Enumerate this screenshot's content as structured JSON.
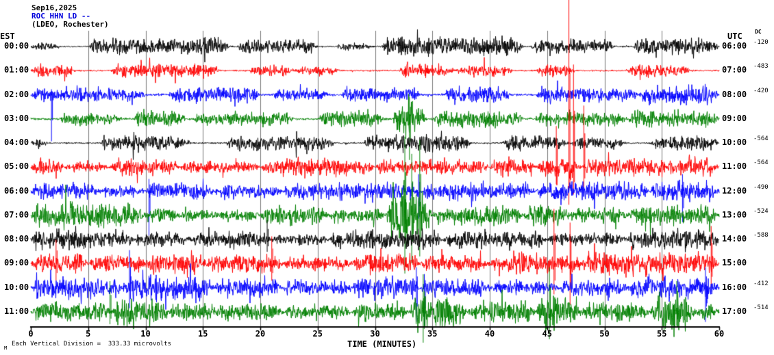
{
  "header": {
    "date": "Sep16,2025",
    "station": "ROC HHN LD --",
    "station_color": "#0000dd",
    "location": "(LDEO, Rochester)"
  },
  "axis": {
    "left": "EST",
    "right": "UTC",
    "dc": "DC",
    "x_label": "TIME (MINUTES)",
    "x_ticks": [
      0,
      5,
      10,
      15,
      20,
      25,
      30,
      35,
      40,
      45,
      50,
      55,
      60
    ]
  },
  "footer": {
    "scale_note": "Each Vertical Division =  333.33 microvolts",
    "mark": "M"
  },
  "chart_data": {
    "type": "line",
    "title": "ROC HHN LD -- (LDEO, Rochester) helicorder, Sep16,2025",
    "x_range_minutes": [
      0,
      60
    ],
    "minutes_per_row": 60,
    "vertical_division_microvolts": 333.33,
    "grid": "vertical lines every 5 minutes",
    "colors_cycle": [
      "#000000",
      "#ff0000",
      "#0000ff",
      "#008000"
    ],
    "rows": [
      {
        "est": "00:00",
        "utc": "06:00",
        "dc": "-120",
        "color": "#000000",
        "seed": 101,
        "base": 1.2,
        "bursts": [
          [
            0,
            2.5,
            7
          ],
          [
            5,
            17.5,
            13
          ],
          [
            18,
            25,
            11
          ],
          [
            26.5,
            30,
            5
          ],
          [
            30.5,
            43,
            15
          ],
          [
            43.5,
            51,
            11
          ],
          [
            52.5,
            60,
            13
          ]
        ],
        "spikes": []
      },
      {
        "est": "01:00",
        "utc": "07:00",
        "dc": "-483",
        "color": "#ff0000",
        "seed": 102,
        "base": 1.2,
        "bursts": [
          [
            0,
            4,
            10
          ],
          [
            7,
            16.5,
            11
          ],
          [
            19,
            23,
            10
          ],
          [
            23,
            27,
            7
          ],
          [
            32,
            37,
            11
          ],
          [
            37,
            42,
            9
          ],
          [
            44,
            47.5,
            10
          ],
          [
            52,
            57.5,
            11
          ]
        ],
        "spikes": []
      },
      {
        "est": "02:00",
        "utc": "08:00",
        "dc": "-420",
        "color": "#0000ff",
        "seed": 103,
        "base": 1.8,
        "bursts": [
          [
            0,
            10,
            11
          ],
          [
            12,
            20,
            13
          ],
          [
            21,
            26,
            9
          ],
          [
            27,
            34,
            11
          ],
          [
            36,
            42,
            13
          ],
          [
            44,
            53,
            13
          ],
          [
            53,
            60,
            15
          ]
        ],
        "spikes": [
          [
            1.8,
            8,
            68
          ]
        ]
      },
      {
        "est": "03:00",
        "utc": "09:00",
        "dc": "",
        "color": "#008000",
        "seed": 104,
        "base": 1.8,
        "bursts": [
          [
            2.5,
            8,
            9
          ],
          [
            9,
            13.5,
            15
          ],
          [
            14,
            23,
            11
          ],
          [
            25,
            31,
            13
          ],
          [
            31.5,
            34.5,
            26
          ],
          [
            35,
            43,
            13
          ],
          [
            44,
            52,
            11
          ],
          [
            52,
            60,
            14
          ]
        ],
        "spikes": [
          [
            33,
            32,
            60
          ]
        ]
      },
      {
        "est": "04:00",
        "utc": "10:00",
        "dc": "-564",
        "color": "#000000",
        "seed": 105,
        "base": 1.2,
        "bursts": [
          [
            0,
            1.5,
            8
          ],
          [
            6,
            14,
            12
          ],
          [
            17,
            26.5,
            12
          ],
          [
            29,
            38.5,
            13
          ],
          [
            41,
            47,
            11
          ],
          [
            47,
            52,
            9
          ],
          [
            54,
            60,
            12
          ]
        ],
        "spikes": []
      },
      {
        "est": "05:00",
        "utc": "11:00",
        "dc": "-564",
        "color": "#ff0000",
        "seed": 106,
        "base": 2.2,
        "bursts": [
          [
            0,
            3,
            13
          ],
          [
            3,
            7,
            8
          ],
          [
            7,
            13,
            13
          ],
          [
            13,
            20,
            9
          ],
          [
            20,
            30,
            13
          ],
          [
            30,
            40,
            11
          ],
          [
            40,
            44,
            14
          ],
          [
            44,
            48,
            18
          ],
          [
            48,
            60,
            14
          ]
        ],
        "spikes": [
          [
            45.8,
            60,
            25
          ],
          [
            46.9,
            250,
            55
          ],
          [
            47.3,
            150,
            40
          ],
          [
            48.2,
            90,
            30
          ]
        ]
      },
      {
        "est": "06:00",
        "utc": "12:00",
        "dc": "-490",
        "color": "#0000ff",
        "seed": 107,
        "base": 2.2,
        "bursts": [
          [
            0,
            6,
            13
          ],
          [
            6,
            10,
            9
          ],
          [
            10,
            16,
            13
          ],
          [
            16,
            22,
            11
          ],
          [
            22,
            34,
            13
          ],
          [
            34,
            44,
            13
          ],
          [
            44,
            54,
            15
          ],
          [
            54,
            60,
            16
          ]
        ],
        "spikes": [
          [
            10.3,
            18,
            65
          ],
          [
            33.8,
            25,
            40
          ],
          [
            56.8,
            25,
            45
          ]
        ]
      },
      {
        "est": "07:00",
        "utc": "13:00",
        "dc": "-524",
        "color": "#008000",
        "seed": 108,
        "base": 3,
        "bursts": [
          [
            0,
            10,
            20
          ],
          [
            10,
            13,
            13
          ],
          [
            13,
            20,
            9
          ],
          [
            20,
            26,
            16
          ],
          [
            26,
            31,
            11
          ],
          [
            31,
            35,
            45
          ],
          [
            35,
            43,
            15
          ],
          [
            43,
            47,
            18
          ],
          [
            47,
            52,
            13
          ],
          [
            52,
            60,
            15
          ]
        ],
        "spikes": [
          [
            32.6,
            115,
            85
          ],
          [
            33.2,
            90,
            70
          ],
          [
            33.9,
            110,
            60
          ]
        ]
      },
      {
        "est": "08:00",
        "utc": "14:00",
        "dc": "-588",
        "color": "#000000",
        "seed": 109,
        "base": 3,
        "bursts": [
          [
            0,
            9,
            15
          ],
          [
            9,
            14,
            11
          ],
          [
            14,
            21,
            13
          ],
          [
            21,
            26,
            9
          ],
          [
            26,
            36,
            15
          ],
          [
            36,
            45,
            13
          ],
          [
            45,
            52,
            11
          ],
          [
            52,
            60,
            15
          ]
        ],
        "spikes": [
          [
            20.6,
            28,
            18
          ]
        ]
      },
      {
        "est": "09:00",
        "utc": "15:00",
        "dc": "",
        "color": "#ff0000",
        "seed": 110,
        "base": 3,
        "bursts": [
          [
            0,
            5,
            16
          ],
          [
            5,
            10,
            13
          ],
          [
            10,
            15,
            18
          ],
          [
            15,
            22,
            14
          ],
          [
            22,
            28,
            11
          ],
          [
            28,
            34,
            15
          ],
          [
            34,
            40,
            13
          ],
          [
            40,
            48,
            16
          ],
          [
            48,
            60,
            18
          ]
        ],
        "spikes": [
          [
            2.2,
            35,
            25
          ],
          [
            21,
            40,
            25
          ],
          [
            45.6,
            80,
            45
          ],
          [
            47,
            60,
            60
          ],
          [
            59.3,
            55,
            35
          ]
        ]
      },
      {
        "est": "10:00",
        "utc": "16:00",
        "dc": "-412",
        "color": "#0000ff",
        "seed": 111,
        "base": 3,
        "bursts": [
          [
            0,
            8,
            16
          ],
          [
            8,
            16,
            20
          ],
          [
            16,
            22,
            14
          ],
          [
            22,
            28,
            12
          ],
          [
            28,
            34,
            18
          ],
          [
            34,
            40,
            14
          ],
          [
            40,
            46,
            11
          ],
          [
            46,
            52,
            13
          ],
          [
            52,
            60,
            18
          ]
        ],
        "spikes": [
          [
            8.6,
            55,
            30
          ],
          [
            33.6,
            30,
            50
          ],
          [
            34.3,
            20,
            55
          ],
          [
            58.8,
            30,
            50
          ]
        ]
      },
      {
        "est": "11:00",
        "utc": "17:00",
        "dc": "-514",
        "color": "#008000",
        "seed": 112,
        "base": 3,
        "bursts": [
          [
            0,
            7,
            15
          ],
          [
            7,
            12,
            22
          ],
          [
            12,
            22,
            13
          ],
          [
            22,
            28,
            11
          ],
          [
            28,
            33,
            15
          ],
          [
            33,
            38,
            26
          ],
          [
            38,
            44,
            17
          ],
          [
            44,
            48,
            28
          ],
          [
            48,
            54,
            15
          ],
          [
            54,
            58,
            28
          ],
          [
            58,
            60,
            13
          ]
        ],
        "spikes": [
          [
            6.9,
            45,
            18
          ],
          [
            34.2,
            55,
            45
          ],
          [
            45.2,
            65,
            40
          ],
          [
            56.3,
            45,
            20
          ]
        ]
      }
    ]
  }
}
